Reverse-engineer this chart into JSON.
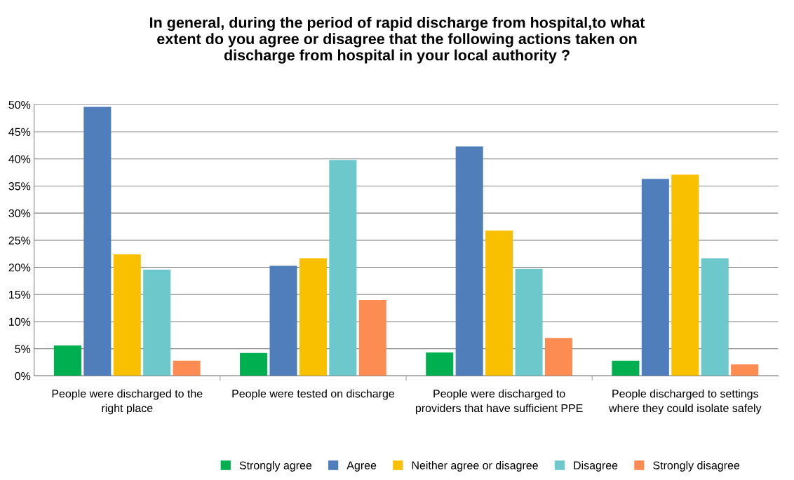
{
  "chart_data": {
    "type": "bar",
    "title": "In general, during the period of rapid discharge from hospital,to what extent do you agree or disagree that the following actions taken on discharge from hospital in your local authority ?",
    "categories": [
      "People were discharged to the right place",
      "People were tested on discharge",
      "People were discharged to providers that have sufficient PPE",
      "People discharged to settings where they could isolate safely"
    ],
    "series": [
      {
        "name": "Strongly agree",
        "color": "#00b050",
        "values": [
          5.6,
          4.2,
          4.3,
          2.8
        ]
      },
      {
        "name": "Agree",
        "color": "#4f7ebb",
        "values": [
          49.6,
          20.3,
          42.3,
          36.3
        ]
      },
      {
        "name": "Neither agree or disagree",
        "color": "#f9c000",
        "values": [
          22.4,
          21.7,
          26.8,
          37.1
        ]
      },
      {
        "name": "Disagree",
        "color": "#6dc8cc",
        "values": [
          19.6,
          39.8,
          19.7,
          21.7
        ]
      },
      {
        "name": "Strongly disagree",
        "color": "#fd8c53",
        "values": [
          2.8,
          14.0,
          7.0,
          2.1
        ]
      }
    ],
    "ylim": [
      0,
      50
    ],
    "yticks": [
      {
        "value": 0,
        "label": "0%"
      },
      {
        "value": 5,
        "label": "5%"
      },
      {
        "value": 10,
        "label": "10%"
      },
      {
        "value": 15,
        "label": "15%"
      },
      {
        "value": 20,
        "label": "20%"
      },
      {
        "value": 25,
        "label": "25%"
      },
      {
        "value": 30,
        "label": "30%"
      },
      {
        "value": 35,
        "label": "35%"
      },
      {
        "value": 40,
        "label": "40%"
      },
      {
        "value": 45,
        "label": "45%"
      },
      {
        "value": 50,
        "label": "50%"
      }
    ],
    "grid": "y",
    "legend": "bottom"
  }
}
